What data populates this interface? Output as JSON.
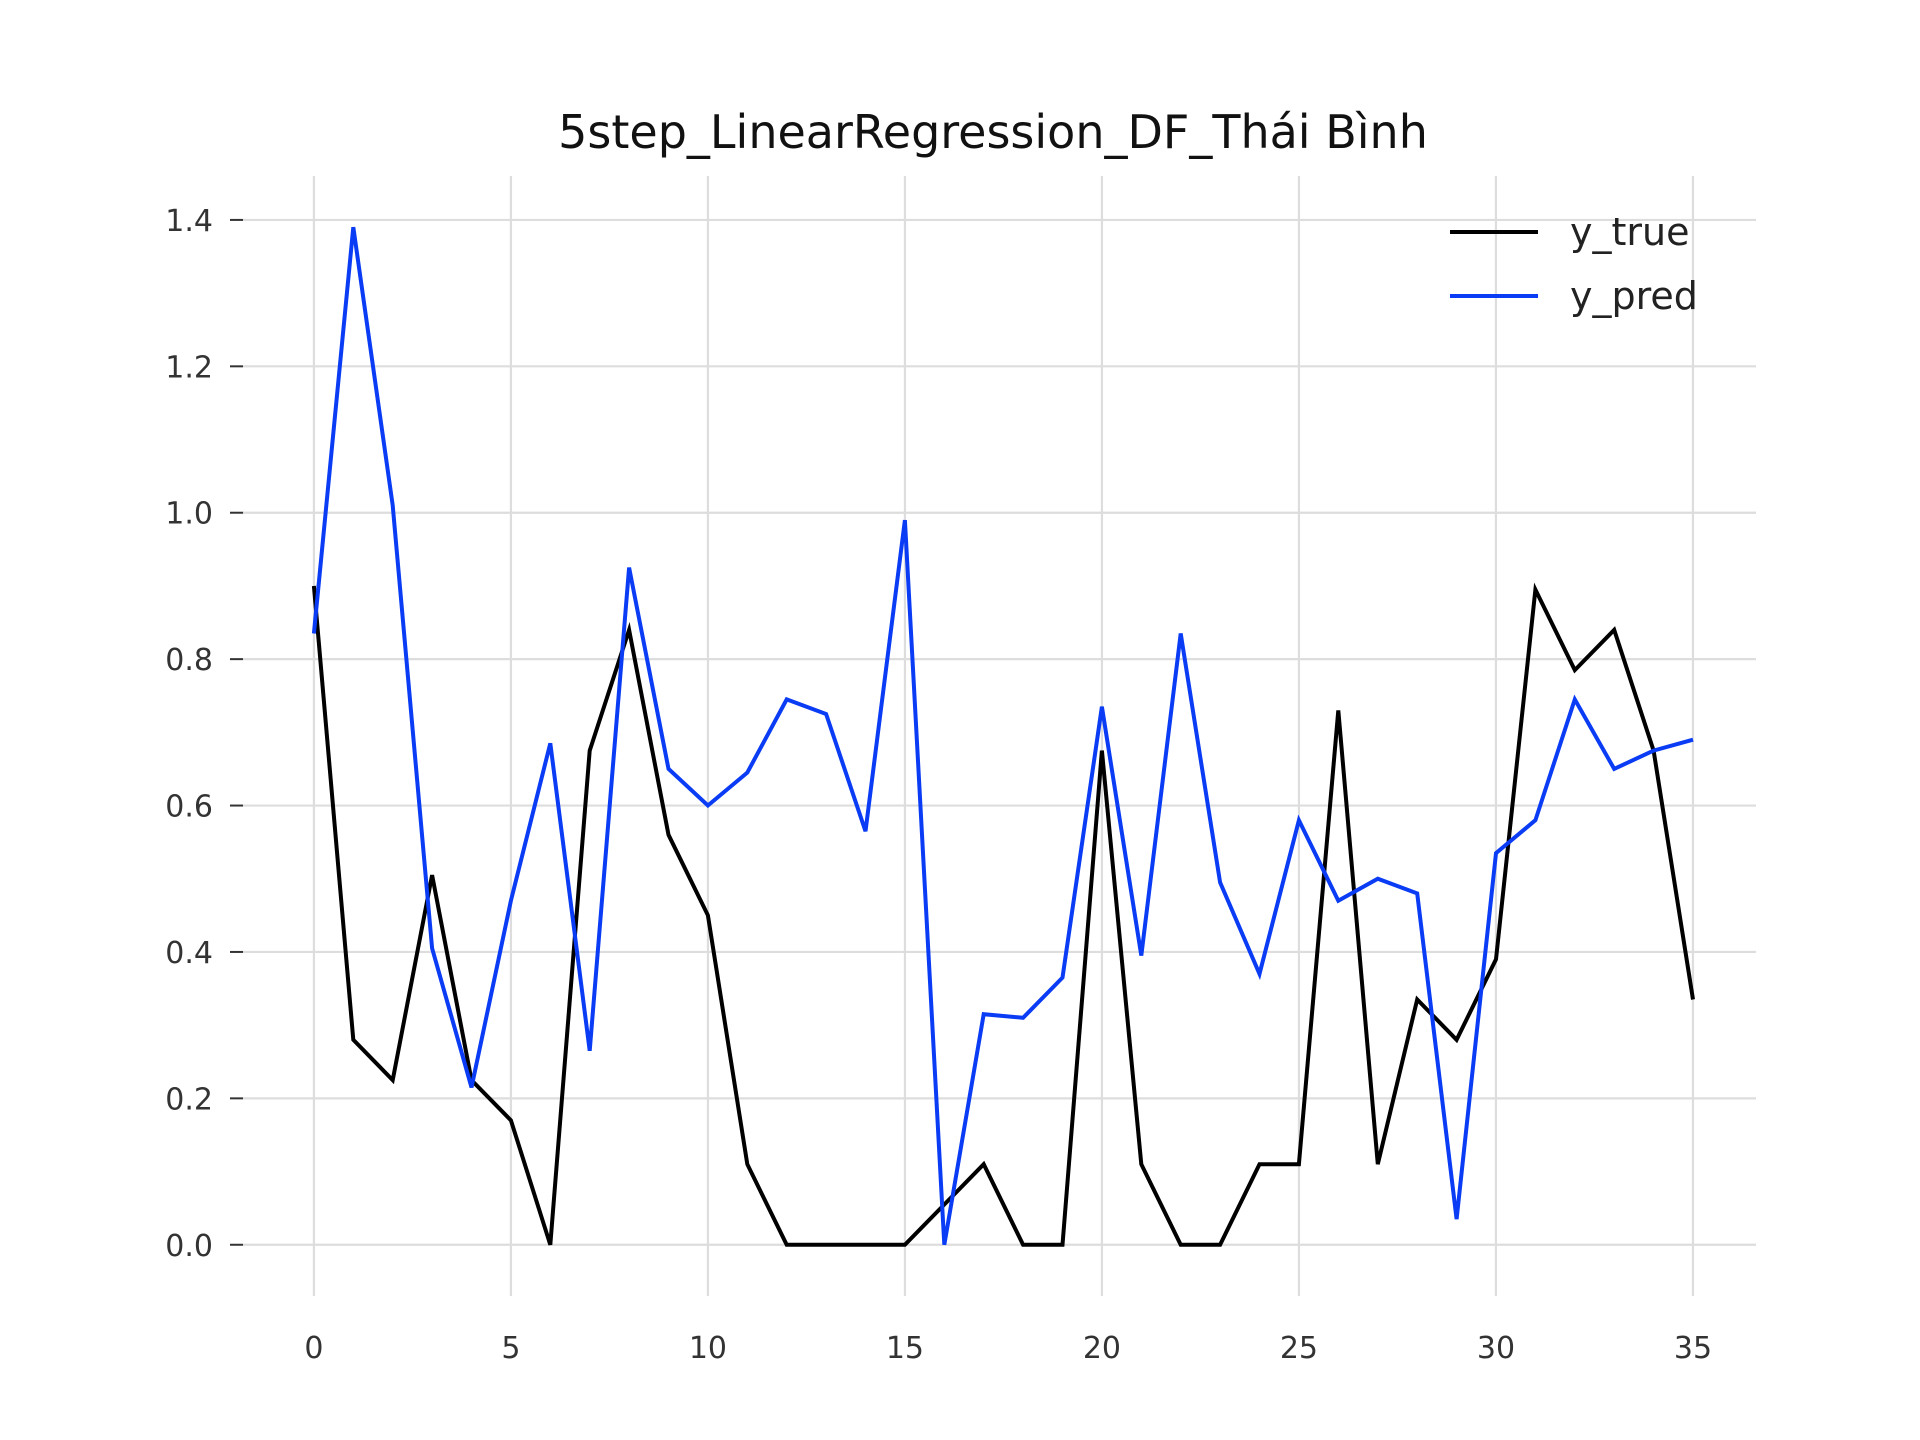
{
  "chart_data": {
    "type": "line",
    "title": "5step_LinearRegression_DF_Thái Bình",
    "xlabel": "",
    "ylabel": "",
    "x": [
      0,
      1,
      2,
      3,
      4,
      5,
      6,
      7,
      8,
      9,
      10,
      11,
      12,
      13,
      14,
      15,
      16,
      17,
      18,
      19,
      20,
      21,
      22,
      23,
      24,
      25,
      26,
      27,
      28,
      29,
      30,
      31,
      32,
      33,
      34,
      35
    ],
    "xlim": [
      -1.8,
      36.6
    ],
    "ylim": [
      -0.07,
      1.46
    ],
    "x_ticks": [
      0,
      5,
      10,
      15,
      20,
      25,
      30,
      35
    ],
    "x_tick_labels": [
      "0",
      "5",
      "10",
      "15",
      "20",
      "25",
      "30",
      "35"
    ],
    "y_ticks": [
      0.0,
      0.2,
      0.4,
      0.6,
      0.8,
      1.0,
      1.2,
      1.4
    ],
    "y_tick_labels": [
      "0.0",
      "0.2",
      "0.4",
      "0.6",
      "0.8",
      "1.0",
      "1.2",
      "1.4"
    ],
    "grid": true,
    "legend_position": "top-right",
    "series": [
      {
        "name": "y_true",
        "color": "#000000",
        "values": [
          0.9,
          0.28,
          0.225,
          0.505,
          0.225,
          0.17,
          0.0,
          0.675,
          0.84,
          0.56,
          0.45,
          0.11,
          0.0,
          0.0,
          0.0,
          0.0,
          0.055,
          0.11,
          0.0,
          0.0,
          0.675,
          0.11,
          0.0,
          0.0,
          0.11,
          0.11,
          0.73,
          0.11,
          0.335,
          0.28,
          0.39,
          0.895,
          0.785,
          0.84,
          0.675,
          0.335
        ]
      },
      {
        "name": "y_pred",
        "color": "#0a3cf5",
        "values": [
          0.835,
          1.39,
          1.01,
          0.405,
          0.215,
          0.47,
          0.685,
          0.265,
          0.925,
          0.65,
          0.6,
          0.645,
          0.745,
          0.725,
          0.565,
          0.99,
          0.0,
          0.315,
          0.31,
          0.365,
          0.735,
          0.395,
          0.835,
          0.495,
          0.37,
          0.58,
          0.47,
          0.5,
          0.48,
          0.035,
          0.535,
          0.58,
          0.745,
          0.65,
          0.675,
          0.69
        ]
      }
    ]
  }
}
